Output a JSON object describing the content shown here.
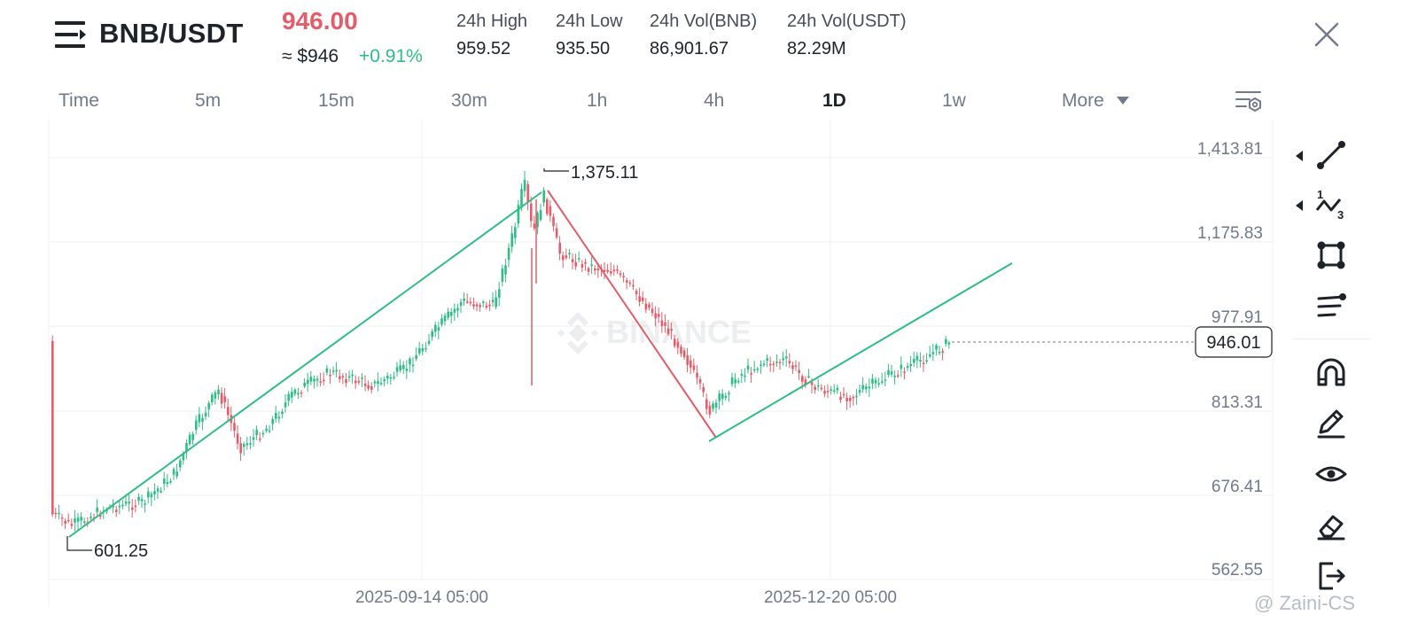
{
  "header": {
    "pair": "BNB/USDT",
    "last_price": "946.00",
    "usd_price": "≈ $946",
    "change": "+0.91%",
    "stats": [
      {
        "label": "24h High",
        "value": "959.52"
      },
      {
        "label": "24h Low",
        "value": "935.50"
      },
      {
        "label": "24h Vol(BNB)",
        "value": "86,901.67"
      },
      {
        "label": "24h Vol(USDT)",
        "value": "82.29M"
      }
    ]
  },
  "tabs": [
    "Time",
    "5m",
    "15m",
    "30m",
    "1h",
    "4h",
    "1D",
    "1w",
    "More"
  ],
  "active_tab": "1D",
  "chart_data": {
    "type": "candlestick",
    "y_ticks": [
      "1,413.81",
      "1,175.83",
      "977.91",
      "813.31",
      "676.41",
      "562.55"
    ],
    "x_ticks": [
      "2025-09-14 05:00",
      "2025-12-20 05:00"
    ],
    "current_price_label": "946.01",
    "high_marker": "1,375.11",
    "low_marker": "601.25",
    "watermark_logo": "BINANCE",
    "colors": {
      "up": "#2ebd85",
      "down": "#e35d6a",
      "trend_up": "#2ebd85",
      "trend_down": "#e35d6a"
    }
  },
  "toolbar": {
    "tools": [
      "trend-line-icon",
      "fibonacci-icon",
      "shape-icon",
      "parallel-lines-icon",
      "magnet-icon",
      "pencil-icon",
      "eye-icon",
      "eraser-icon",
      "exit-icon"
    ]
  },
  "footer": {
    "watermark": "@ Zaini-CS"
  }
}
